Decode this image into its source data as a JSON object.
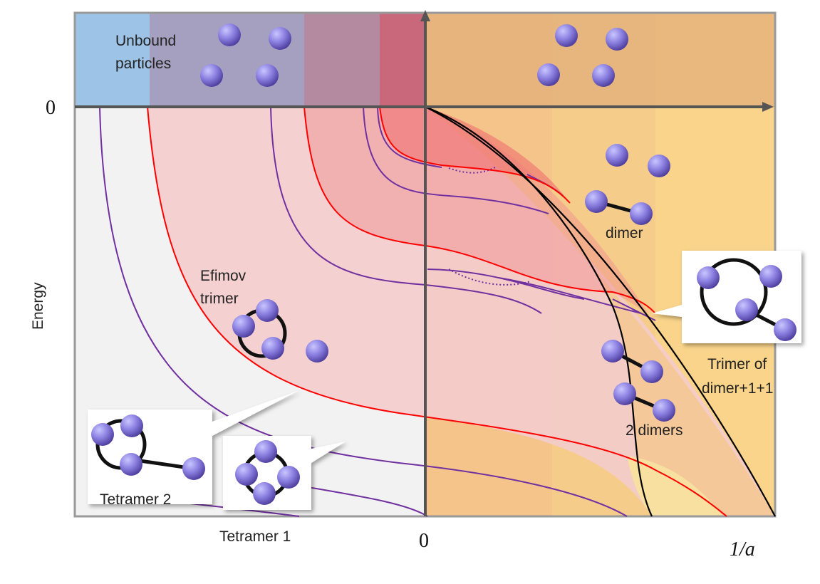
{
  "axes": {
    "y_zero": "0",
    "x_zero": "0",
    "y_label": "Energy",
    "x_label": "1/a"
  },
  "regions": {
    "unbound_particles": [
      "Unbound",
      "particles"
    ],
    "efimov_trimer": [
      "Efimov",
      "trimer"
    ],
    "dimer": "dimer",
    "trimer_of_dimer": [
      "Trimer of",
      "dimer+1+1"
    ],
    "two_dimers": "2 dimers"
  },
  "callouts": {
    "tetramer_2": "Tetramer 2",
    "tetramer_1": "Tetramer 1"
  }
}
